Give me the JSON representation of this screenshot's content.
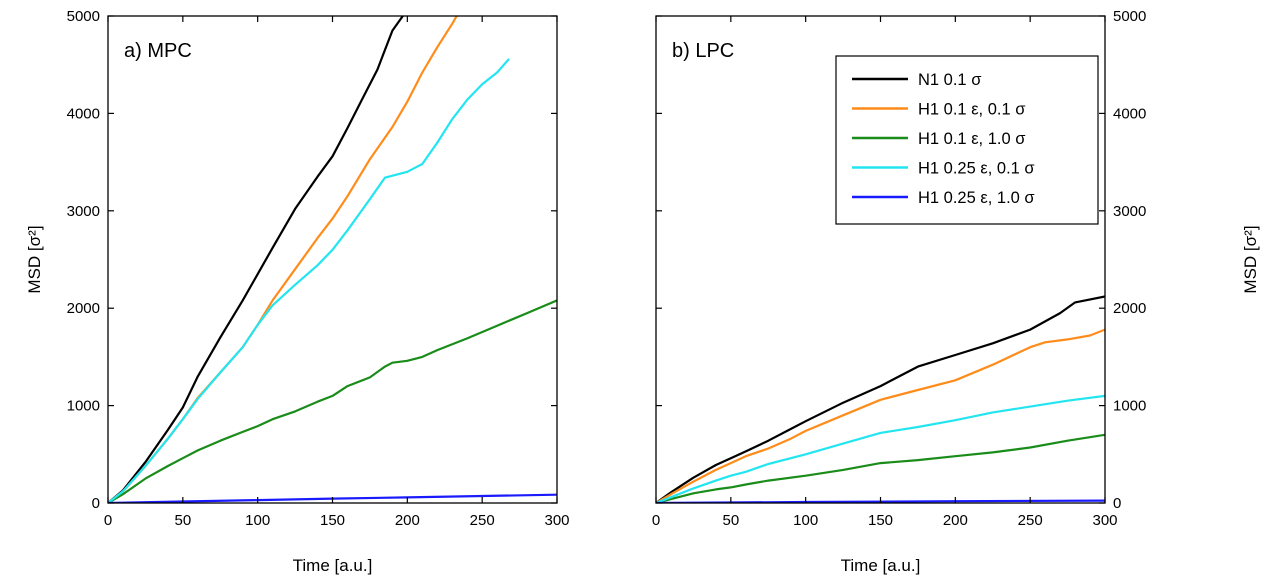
{
  "chart_data": [
    {
      "type": "line",
      "panel_label": "a) MPC",
      "xlabel": "Time [a.u.]",
      "ylabel": "MSD [σ²]",
      "xlim": [
        0,
        300
      ],
      "ylim": [
        0,
        5000
      ],
      "xticks": [
        0,
        50,
        100,
        150,
        200,
        250,
        300
      ],
      "yticks": [
        0,
        1000,
        2000,
        3000,
        4000,
        5000
      ],
      "y_tick_side": "left",
      "series": [
        {
          "name": "N1 0.1 σ",
          "color": "#000000",
          "x": [
            0,
            10,
            25,
            40,
            50,
            60,
            75,
            90,
            100,
            110,
            125,
            140,
            150,
            160,
            170,
            180,
            190,
            197
          ],
          "y": [
            0,
            130,
            420,
            750,
            980,
            1300,
            1700,
            2080,
            2350,
            2620,
            3020,
            3350,
            3560,
            3850,
            4150,
            4450,
            4850,
            5000
          ]
        },
        {
          "name": "H1 0.1 ε, 0.1 σ",
          "color": "#ff8c1a",
          "x": [
            0,
            10,
            25,
            40,
            50,
            60,
            75,
            90,
            100,
            110,
            125,
            140,
            150,
            160,
            175,
            190,
            200,
            210,
            220,
            230,
            233
          ],
          "y": [
            0,
            120,
            380,
            660,
            860,
            1080,
            1340,
            1600,
            1830,
            2080,
            2400,
            2720,
            2920,
            3150,
            3530,
            3860,
            4120,
            4420,
            4680,
            4920,
            5000
          ]
        },
        {
          "name": "H1 0.1 ε, 1.0 σ",
          "color": "#1a8c1a",
          "x": [
            0,
            10,
            25,
            40,
            50,
            60,
            75,
            90,
            100,
            110,
            125,
            140,
            150,
            160,
            175,
            185,
            190,
            200,
            210,
            220,
            240,
            260,
            280,
            300
          ],
          "y": [
            0,
            90,
            250,
            380,
            460,
            540,
            640,
            730,
            790,
            860,
            940,
            1040,
            1100,
            1200,
            1290,
            1400,
            1440,
            1460,
            1500,
            1570,
            1690,
            1820,
            1950,
            2080
          ]
        },
        {
          "name": "H1 0.25 ε, 0.1 σ",
          "color": "#22e5f0",
          "x": [
            0,
            10,
            25,
            40,
            50,
            60,
            75,
            90,
            100,
            110,
            125,
            140,
            150,
            160,
            175,
            185,
            200,
            210,
            220,
            230,
            240,
            250,
            260,
            268
          ],
          "y": [
            0,
            120,
            380,
            660,
            860,
            1070,
            1340,
            1600,
            1830,
            2030,
            2240,
            2440,
            2600,
            2800,
            3120,
            3340,
            3400,
            3480,
            3700,
            3940,
            4140,
            4300,
            4420,
            4560
          ]
        },
        {
          "name": "H1 0.25 ε, 1.0 σ",
          "color": "#1a1aff",
          "x": [
            0,
            50,
            100,
            150,
            200,
            250,
            300
          ],
          "y": [
            0,
            15,
            30,
            45,
            58,
            72,
            85
          ]
        }
      ]
    },
    {
      "type": "line",
      "panel_label": "b) LPC",
      "xlabel": "Time [a.u.]",
      "ylabel": "MSD [σ²]",
      "xlim": [
        0,
        300
      ],
      "ylim": [
        0,
        5000
      ],
      "xticks": [
        0,
        50,
        100,
        150,
        200,
        250,
        300
      ],
      "yticks": [
        0,
        1000,
        2000,
        3000,
        4000,
        5000
      ],
      "y_tick_side": "right",
      "legend_position": "top-right",
      "series": [
        {
          "name": "N1 0.1 σ",
          "color": "#000000",
          "x": [
            0,
            10,
            25,
            40,
            50,
            60,
            75,
            90,
            100,
            125,
            150,
            175,
            200,
            225,
            250,
            270,
            280,
            300
          ],
          "y": [
            0,
            110,
            260,
            390,
            460,
            530,
            640,
            760,
            840,
            1030,
            1200,
            1400,
            1520,
            1640,
            1780,
            1950,
            2060,
            2120
          ]
        },
        {
          "name": "H1 0.1 ε, 0.1 σ",
          "color": "#ff8c1a",
          "x": [
            0,
            10,
            25,
            40,
            50,
            60,
            75,
            90,
            100,
            125,
            150,
            175,
            200,
            225,
            250,
            260,
            275,
            290,
            300
          ],
          "y": [
            0,
            90,
            220,
            340,
            410,
            480,
            560,
            660,
            740,
            900,
            1060,
            1160,
            1260,
            1420,
            1600,
            1650,
            1680,
            1720,
            1780
          ]
        },
        {
          "name": "H1 0.1 ε, 1.0 σ",
          "color": "#1a8c1a",
          "x": [
            0,
            10,
            25,
            40,
            50,
            60,
            75,
            100,
            125,
            150,
            175,
            200,
            225,
            250,
            275,
            300
          ],
          "y": [
            0,
            40,
            100,
            140,
            160,
            190,
            230,
            280,
            340,
            410,
            440,
            480,
            520,
            570,
            640,
            700
          ]
        },
        {
          "name": "H1 0.25 ε, 0.1 σ",
          "color": "#22e5f0",
          "x": [
            0,
            10,
            25,
            40,
            50,
            60,
            75,
            100,
            125,
            150,
            175,
            200,
            225,
            250,
            275,
            300
          ],
          "y": [
            0,
            60,
            150,
            230,
            280,
            320,
            400,
            500,
            610,
            720,
            780,
            850,
            930,
            990,
            1050,
            1100
          ]
        },
        {
          "name": "H1 0.25 ε, 1.0 σ",
          "color": "#1a1aff",
          "x": [
            0,
            100,
            200,
            300
          ],
          "y": [
            0,
            10,
            18,
            25
          ]
        }
      ]
    }
  ]
}
